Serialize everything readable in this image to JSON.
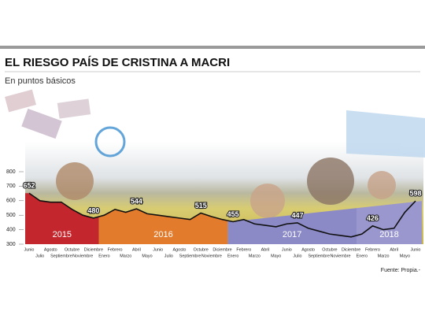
{
  "chart_data": {
    "type": "line",
    "title": "EL RIESGO PAÍS DE CRISTINA A MACRI",
    "subtitle": "En puntos básicos",
    "source": "Fuente: Propia.-",
    "categories": [
      "Junio",
      "Julio",
      "Agosto",
      "Septiembre",
      "Octubre",
      "Noviembre",
      "Diciembre",
      "Enero",
      "Febrero",
      "Marzo",
      "Abril",
      "Mayo",
      "Junio",
      "Julio",
      "Agosto",
      "Septiembre",
      "Octubre",
      "Noviembre",
      "Diciembre",
      "Enero",
      "Febrero",
      "Marzo",
      "Abril",
      "Mayo",
      "Junio",
      "Julio",
      "Agosto",
      "Septiembre",
      "Octubre",
      "Noviembre",
      "Diciembre",
      "Enero",
      "Febrero",
      "Marzo",
      "Abril",
      "Mayo",
      "Junio"
    ],
    "values": [
      652,
      600,
      590,
      590,
      540,
      500,
      480,
      500,
      540,
      520,
      544,
      510,
      500,
      490,
      480,
      470,
      515,
      490,
      470,
      455,
      470,
      440,
      430,
      420,
      440,
      447,
      410,
      390,
      370,
      360,
      350,
      370,
      426,
      400,
      410,
      520,
      598
    ],
    "value_labels": [
      "652",
      null,
      null,
      null,
      null,
      null,
      "480",
      null,
      null,
      null,
      "544",
      null,
      null,
      null,
      null,
      null,
      "515",
      null,
      null,
      "455",
      null,
      null,
      null,
      null,
      null,
      "447",
      null,
      null,
      null,
      null,
      null,
      null,
      "426",
      null,
      null,
      null,
      "598"
    ],
    "years": [
      "2015",
      "2016",
      "2017",
      "2018"
    ],
    "band_colors": [
      "#c3262c",
      "#e27b2c",
      "#8b8ac6",
      "#9a97cf"
    ],
    "color": "#111111",
    "ylim": [
      300,
      800
    ],
    "yticks": [
      300,
      400,
      500,
      600,
      700,
      800
    ]
  }
}
